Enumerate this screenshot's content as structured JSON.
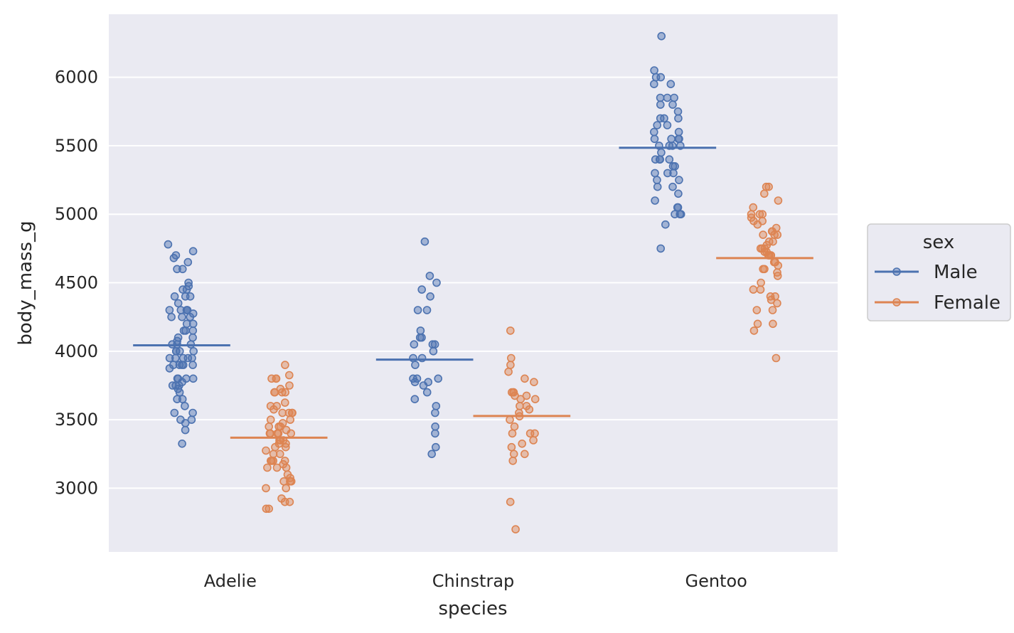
{
  "chart_data": {
    "type": "scatter",
    "subtype": "strip plot with mean lines",
    "xlabel": "species",
    "ylabel": "body_mass_g",
    "categories": [
      "Adelie",
      "Chinstrap",
      "Gentoo"
    ],
    "ylim": [
      2535,
      6460
    ],
    "yticks": [
      3000,
      3500,
      4000,
      4500,
      5000,
      5500,
      6000
    ],
    "grid": true,
    "legend": {
      "title": "sex",
      "placement": "right"
    },
    "series": [
      {
        "name": "Male",
        "color": "#4c72b0",
        "means": [
          4043,
          3939,
          5485
        ],
        "points": [
          [
            4780,
            4730,
            4700,
            4680,
            4650,
            4600,
            4600,
            4500,
            4475,
            4450,
            4450,
            4400,
            4400,
            4400,
            4350,
            4300,
            4300,
            4300,
            4300,
            4300,
            4275,
            4250,
            4250,
            4250,
            4200,
            4200,
            4150,
            4150,
            4150,
            4100,
            4100,
            4075,
            4050,
            4050,
            4050,
            4000,
            4000,
            4000,
            4000,
            3950,
            3950,
            3950,
            3950,
            3950,
            3900,
            3900,
            3900,
            3900,
            3900,
            3875,
            3800,
            3800,
            3800,
            3800,
            3775,
            3750,
            3750,
            3750,
            3725,
            3700,
            3650,
            3650,
            3600,
            3550,
            3550,
            3500,
            3500,
            3475,
            3425,
            3325
          ],
          [
            4800,
            4550,
            4500,
            4450,
            4400,
            4300,
            4300,
            4150,
            4100,
            4100,
            4050,
            4050,
            4050,
            4000,
            3950,
            3950,
            3900,
            3800,
            3800,
            3800,
            3775,
            3775,
            3750,
            3700,
            3650,
            3600,
            3550,
            3450,
            3400,
            3300,
            3250
          ],
          [
            6300,
            6050,
            6000,
            6000,
            5950,
            5950,
            5850,
            5850,
            5850,
            5800,
            5800,
            5750,
            5700,
            5700,
            5700,
            5650,
            5650,
            5600,
            5600,
            5550,
            5550,
            5550,
            5550,
            5500,
            5500,
            5500,
            5500,
            5450,
            5400,
            5400,
            5400,
            5400,
            5350,
            5350,
            5300,
            5300,
            5300,
            5250,
            5250,
            5200,
            5200,
            5150,
            5100,
            5050,
            5050,
            5000,
            5000,
            5000,
            4925,
            4750
          ]
        ]
      },
      {
        "name": "Female",
        "color": "#dd8452",
        "means": [
          3369,
          3527,
          4680
        ],
        "points": [
          [
            3900,
            3825,
            3800,
            3800,
            3800,
            3750,
            3725,
            3700,
            3700,
            3700,
            3700,
            3625,
            3600,
            3600,
            3575,
            3550,
            3550,
            3550,
            3550,
            3500,
            3500,
            3475,
            3450,
            3450,
            3450,
            3425,
            3400,
            3400,
            3400,
            3400,
            3400,
            3350,
            3350,
            3350,
            3325,
            3325,
            3300,
            3300,
            3275,
            3250,
            3250,
            3200,
            3200,
            3200,
            3200,
            3175,
            3150,
            3150,
            3150,
            3100,
            3075,
            3050,
            3050,
            3050,
            3000,
            3000,
            2925,
            2900,
            2900,
            2850,
            2850
          ],
          [
            4150,
            3950,
            3900,
            3850,
            3800,
            3775,
            3700,
            3700,
            3700,
            3675,
            3675,
            3650,
            3650,
            3600,
            3600,
            3575,
            3550,
            3525,
            3500,
            3450,
            3400,
            3400,
            3400,
            3350,
            3325,
            3300,
            3250,
            3250,
            3200,
            2900,
            2700
          ],
          [
            5200,
            5200,
            5150,
            5100,
            5050,
            5000,
            5000,
            5000,
            4975,
            4950,
            4950,
            4925,
            4900,
            4875,
            4875,
            4850,
            4850,
            4850,
            4800,
            4800,
            4775,
            4750,
            4750,
            4750,
            4725,
            4725,
            4700,
            4700,
            4700,
            4700,
            4650,
            4650,
            4625,
            4600,
            4600,
            4575,
            4550,
            4500,
            4450,
            4450,
            4400,
            4400,
            4375,
            4350,
            4300,
            4300,
            4200,
            4200,
            4150,
            3950
          ]
        ]
      }
    ]
  }
}
